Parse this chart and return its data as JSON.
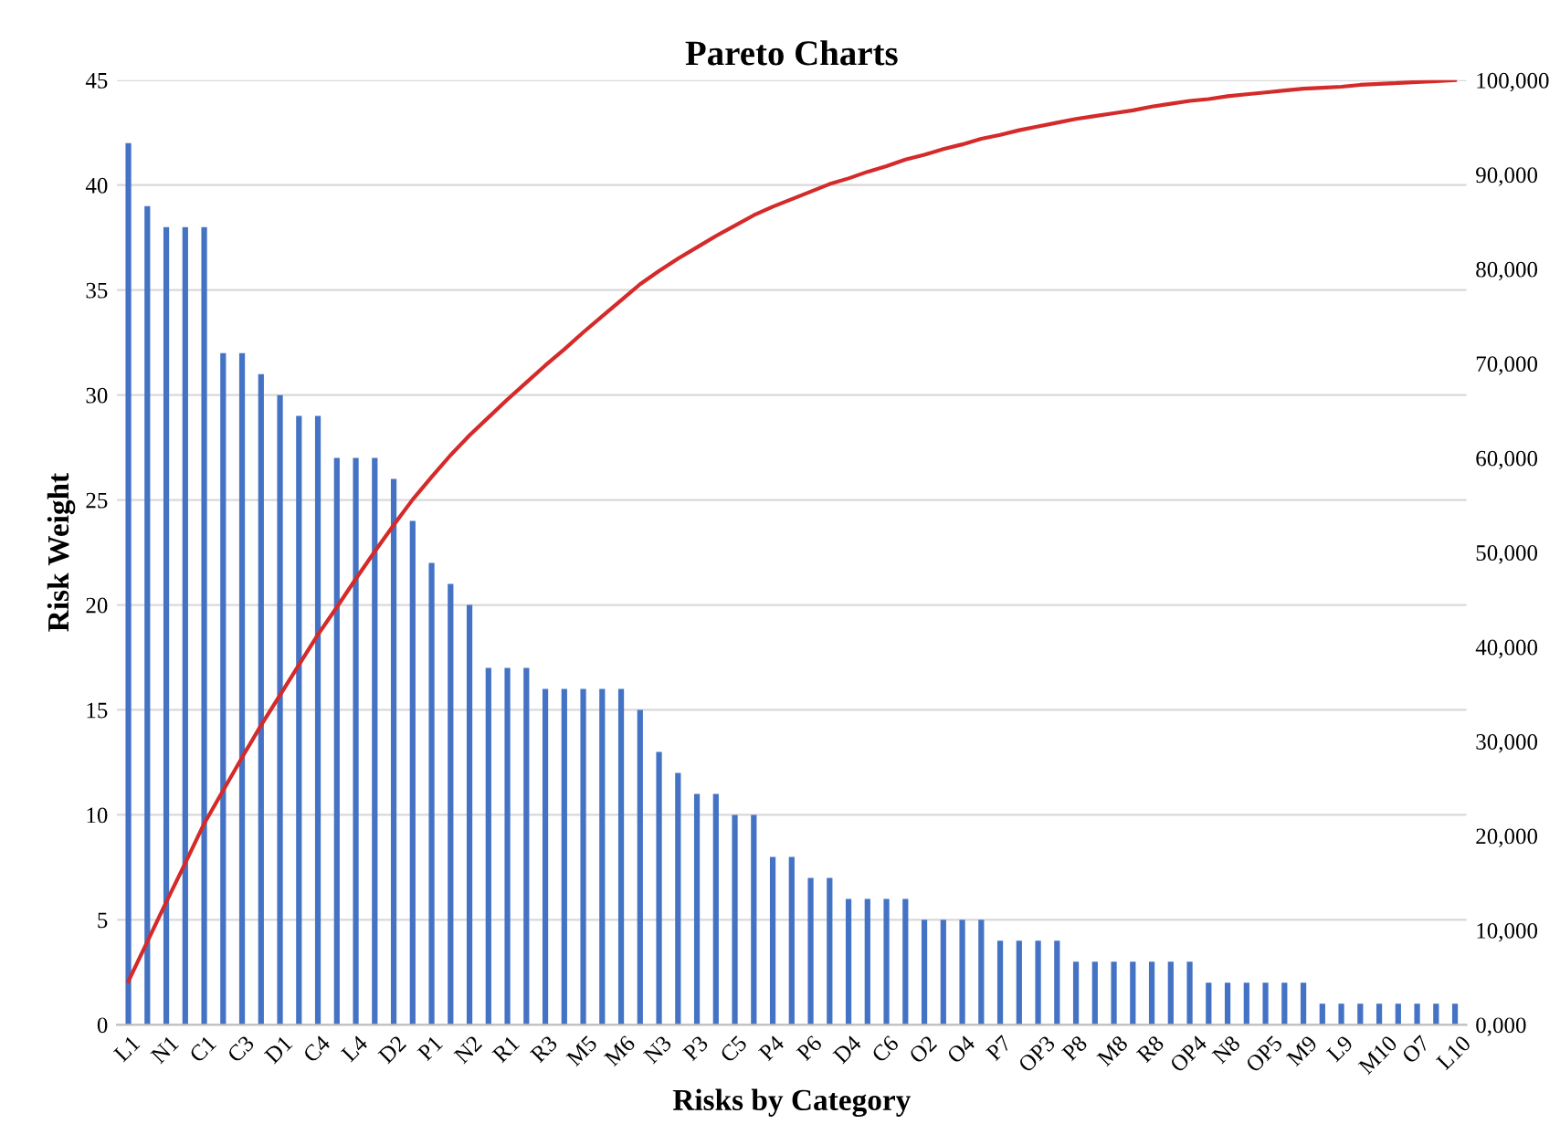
{
  "chart_data": {
    "type": "bar",
    "title": "Pareto Charts",
    "xlabel": "Risks by Category",
    "ylabel": "Risk Weight",
    "categories": [
      "L1",
      null,
      "N1",
      null,
      "C1",
      null,
      "C3",
      null,
      "D1",
      null,
      "C4",
      null,
      "L4",
      null,
      "D2",
      null,
      "P1",
      null,
      "N2",
      null,
      "R1",
      null,
      "R3",
      null,
      "M5",
      null,
      "M6",
      null,
      "N3",
      null,
      "P3",
      null,
      "C5",
      null,
      "P4",
      null,
      "P6",
      null,
      "D4",
      null,
      "C6",
      null,
      "O2",
      null,
      "O4",
      null,
      "P7",
      null,
      "OP3",
      null,
      "P8",
      null,
      "M8",
      null,
      "R8",
      null,
      "OP4",
      null,
      "N8",
      null,
      "OP5",
      null,
      "M9",
      null,
      "L9",
      null,
      "M10",
      null,
      "O7",
      null,
      "L10"
    ],
    "series": [
      {
        "color": "#4472c4",
        "values": [
          42,
          39,
          38,
          38,
          38,
          32,
          32,
          31,
          30,
          29,
          29,
          27,
          27,
          27,
          26,
          24,
          22,
          21,
          20,
          17,
          17,
          17,
          16,
          16,
          16,
          16,
          16,
          15,
          13,
          12,
          11,
          11,
          10,
          10,
          8,
          8,
          7,
          7,
          6,
          6,
          6,
          6,
          5,
          5,
          5,
          5,
          4,
          4,
          4,
          4,
          3,
          3,
          3,
          3,
          3,
          3,
          3,
          2,
          2,
          2,
          2,
          2,
          2,
          1,
          1,
          1,
          1,
          1,
          1,
          1,
          1
        ]
      },
      {
        "type": "line",
        "axis": "y2",
        "color": "#d42a2a",
        "values": [
          4600,
          8800,
          13000,
          17100,
          21300,
          24800,
          28300,
          31700,
          34900,
          38100,
          41300,
          44200,
          47200,
          50100,
          52900,
          55600,
          58000,
          60300,
          62400,
          64300,
          66200,
          68000,
          69800,
          71500,
          73300,
          75000,
          76700,
          78400,
          79800,
          81100,
          82300,
          83500,
          84600,
          85700,
          86600,
          87400,
          88200,
          89000,
          89600,
          90300,
          90900,
          91600,
          92100,
          92700,
          93200,
          93800,
          94200,
          94700,
          95100,
          95500,
          95900,
          96200,
          96500,
          96800,
          97200,
          97500,
          97800,
          98000,
          98300,
          98500,
          98700,
          98900,
          99100,
          99200,
          99300,
          99500,
          99600,
          99700,
          99800,
          99900,
          100000
        ]
      }
    ],
    "ylim": [
      0,
      45
    ],
    "yticks": [
      0,
      5,
      10,
      15,
      20,
      25,
      30,
      35,
      40,
      45
    ],
    "y2lim": [
      0,
      100000
    ],
    "y2ticks": [
      {
        "value": 0,
        "label": "0,000"
      },
      {
        "value": 10000,
        "label": "10,000"
      },
      {
        "value": 20000,
        "label": "20,000"
      },
      {
        "value": 30000,
        "label": "30,000"
      },
      {
        "value": 40000,
        "label": "40,000"
      },
      {
        "value": 50000,
        "label": "50,000"
      },
      {
        "value": 60000,
        "label": "60,000"
      },
      {
        "value": 70000,
        "label": "70,000"
      },
      {
        "value": 80000,
        "label": "80,000"
      },
      {
        "value": 90000,
        "label": "90,000"
      },
      {
        "value": 100000,
        "label": "100,000"
      }
    ],
    "grid": "y",
    "marker": "none",
    "line_style": "solid"
  }
}
